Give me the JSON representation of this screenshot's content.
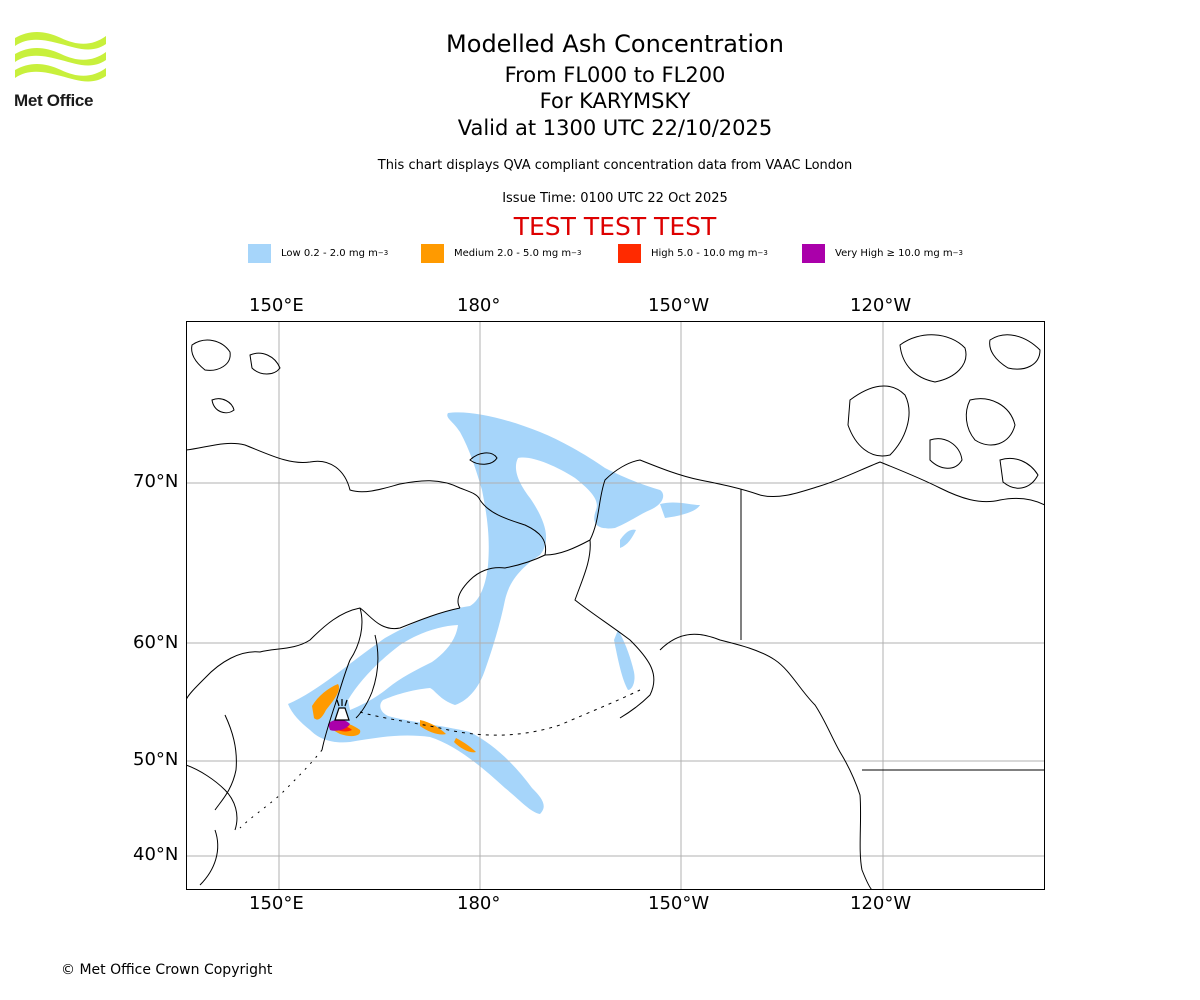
{
  "logo": {
    "text": "Met Office",
    "icon": "met-office-wave-logo",
    "color": "#c8f03c"
  },
  "header": {
    "title": "Modelled Ash Concentration",
    "levels": "From FL000 to FL200",
    "volcano": "For KARYMSKY",
    "valid": "Valid at 1300 UTC 22/10/2025",
    "compliance": "This chart displays QVA compliant concentration data from VAAC London",
    "issue": "Issue Time: 0100 UTC 22 Oct 2025",
    "test_banner": "TEST TEST TEST"
  },
  "legend": [
    {
      "label": "Low 0.2 - 2.0 mg m",
      "color": "#a6d5fa"
    },
    {
      "label": "Medium 2.0 - 5.0 mg m",
      "color": "#ff9a00"
    },
    {
      "label": "High 5.0 - 10.0 mg m",
      "color": "#ff2a00"
    },
    {
      "label": "Very High ≥ 10.0 mg m",
      "color": "#aa00aa"
    }
  ],
  "legend_unit_exponent": "−3",
  "map": {
    "lon_ticks": [
      "150°E",
      "180°",
      "150°W",
      "120°W"
    ],
    "lat_ticks": [
      "70°N",
      "60°N",
      "50°N",
      "40°N"
    ],
    "volcano_icon": "volcano-icon"
  },
  "footer": {
    "copyright": "© Met Office Crown Copyright"
  }
}
